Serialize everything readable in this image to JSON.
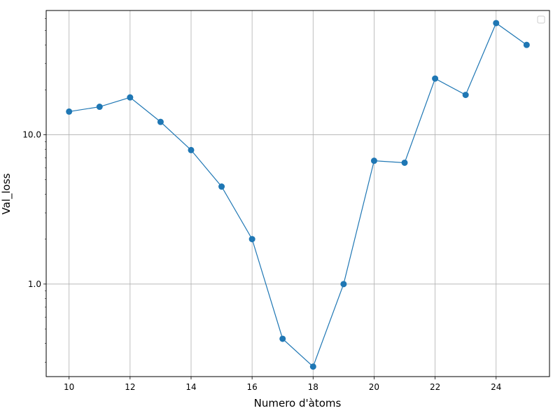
{
  "chart_data": {
    "type": "line",
    "xlabel": "Numero d'àtoms",
    "ylabel": "Val_loss",
    "yscale": "log",
    "grid": true,
    "legend": "top-right (empty)",
    "x": [
      10,
      11,
      12,
      13,
      14,
      15,
      16,
      17,
      18,
      19,
      20,
      21,
      22,
      23,
      24,
      25
    ],
    "series": [
      {
        "values": [
          14.3,
          15.4,
          17.8,
          12.2,
          7.9,
          4.5,
          2.0,
          0.43,
          0.28,
          1.0,
          6.7,
          6.5,
          23.8,
          18.5,
          56.0,
          40.0
        ],
        "color": "#1f77b4"
      }
    ],
    "xticks": [
      10,
      12,
      14,
      16,
      18,
      20,
      22,
      24
    ],
    "xtick_labels": [
      "10",
      "12",
      "14",
      "16",
      "18",
      "20",
      "22",
      "24"
    ],
    "yticks": [
      1.0,
      10.0
    ],
    "ytick_labels": [
      "1.0",
      "10.0"
    ],
    "xlim": [
      9.25,
      25.75
    ],
    "ylim": [
      0.24,
      68
    ]
  }
}
